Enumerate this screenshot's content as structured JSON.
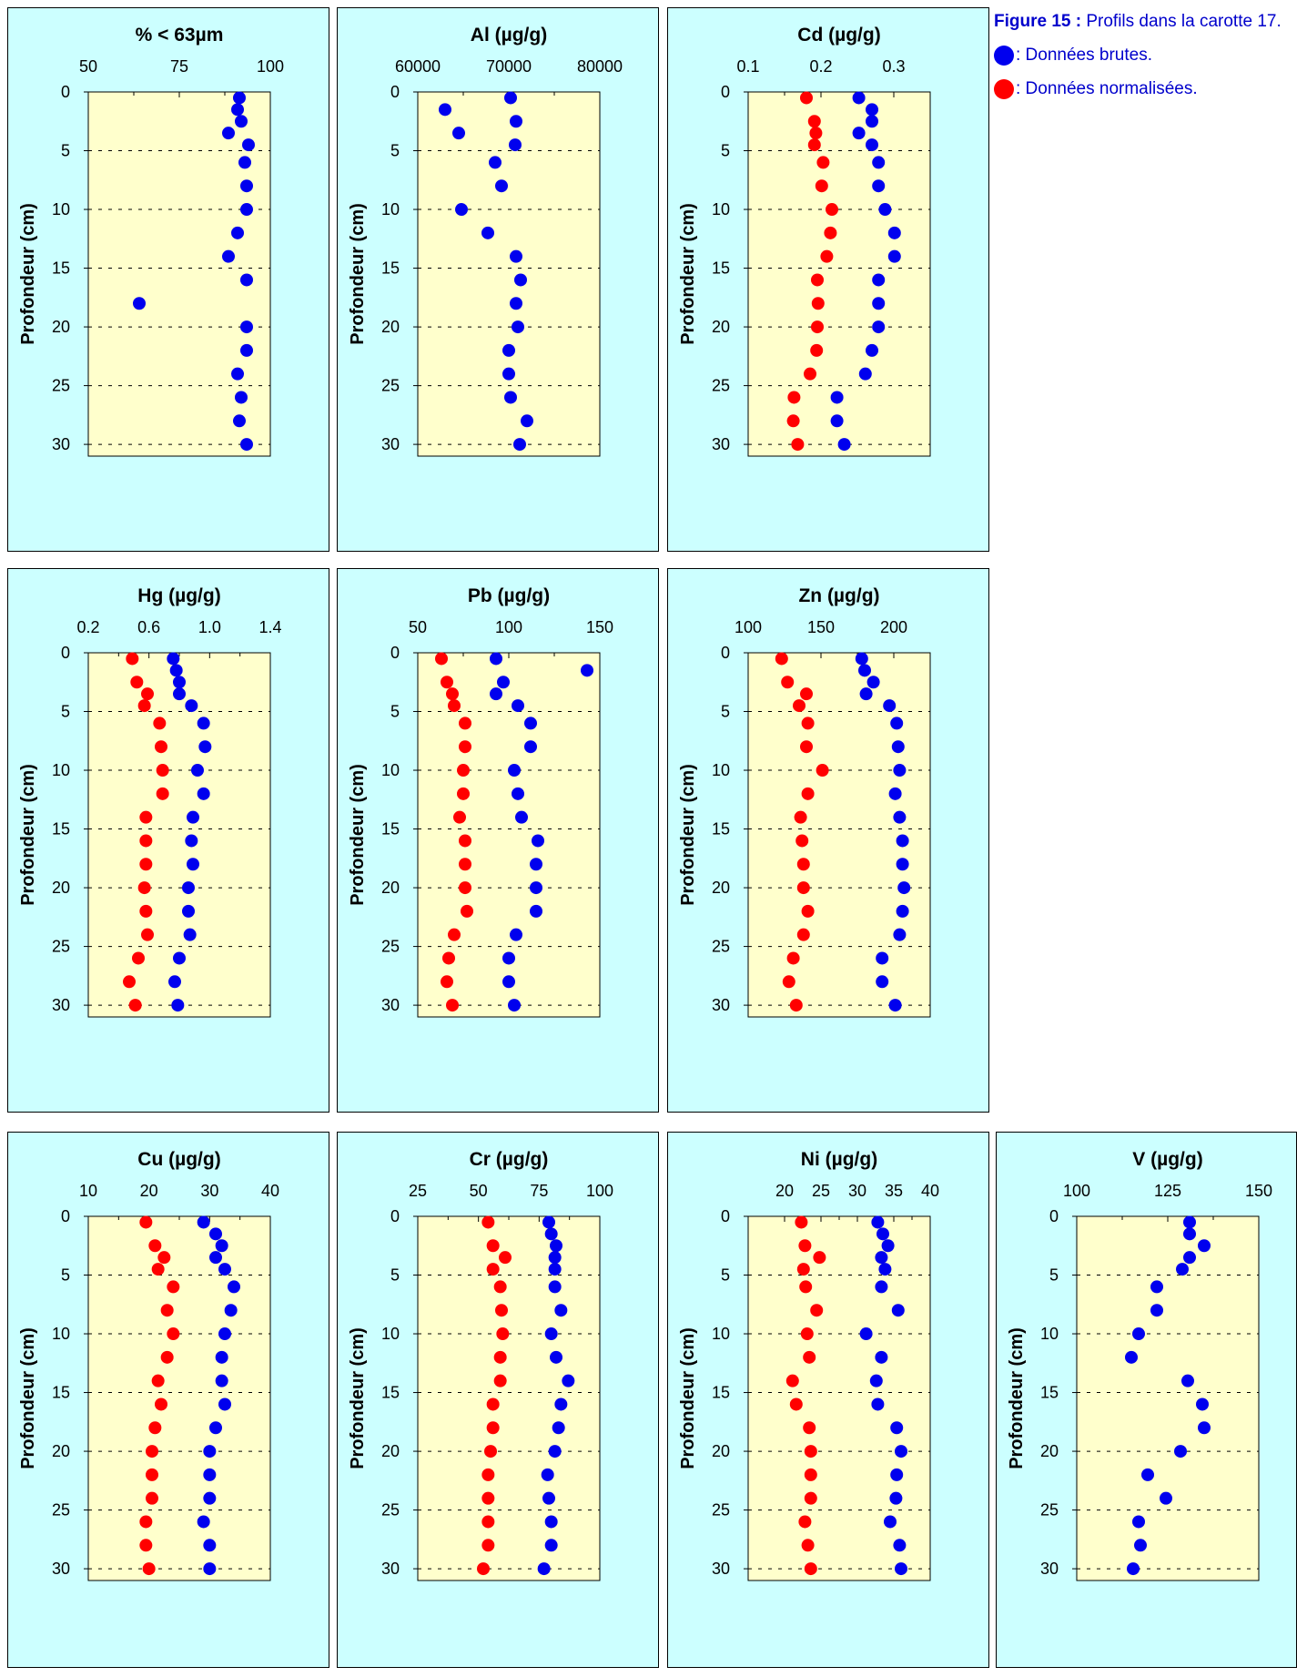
{
  "caption": {
    "label": "Figure 15 :",
    "text": "Profils dans la carotte 17.",
    "legend": [
      {
        "marker_color": "#0000ee",
        "text": ": Données brutes."
      },
      {
        "marker_color": "#ff0000",
        "text": ": Données normalisées."
      }
    ]
  },
  "colors": {
    "panel_bg": "#ccffff",
    "plot_bg": "#ffffcc",
    "raw": "#0000ee",
    "normalized": "#ff0000"
  },
  "chart_data": [
    {
      "type": "scatter",
      "title": "% < 63µm",
      "ylabel": "Profondeur (cm)",
      "xlim": [
        50,
        100
      ],
      "xticks": [
        50,
        75,
        100
      ],
      "xtick_labels": [
        "50",
        "75",
        "100"
      ],
      "ylim": [
        0,
        31
      ],
      "yticks": [
        0,
        5,
        10,
        15,
        20,
        25,
        30
      ],
      "series": [
        {
          "color": "#0000ee",
          "x": [
            91.5,
            91,
            92,
            88.5,
            94,
            93,
            93.5,
            93.5,
            91,
            88.5,
            93.5,
            64,
            93.5,
            93.5,
            91,
            92,
            91.5,
            93.5
          ],
          "y": [
            0.5,
            1.5,
            2.5,
            3.5,
            4.5,
            6,
            8,
            10,
            12,
            14,
            16,
            18,
            20,
            22,
            24,
            26,
            28,
            30
          ]
        }
      ]
    },
    {
      "type": "scatter",
      "title": "Al (µg/g)",
      "ylabel": "Profondeur (cm)",
      "xlim": [
        60000,
        80000
      ],
      "xticks": [
        60000,
        70000,
        80000
      ],
      "xtick_labels": [
        "60000",
        "70000",
        "80000"
      ],
      "ylim": [
        0,
        31
      ],
      "yticks": [
        0,
        5,
        10,
        15,
        20,
        25,
        30
      ],
      "series": [
        {
          "color": "#0000ee",
          "x": [
            70200,
            63000,
            70800,
            64500,
            70700,
            68500,
            69200,
            64800,
            67700,
            70800,
            71300,
            70800,
            71000,
            70000,
            70000,
            70200,
            72000,
            71200
          ],
          "y": [
            0.5,
            1.5,
            2.5,
            3.5,
            4.5,
            6,
            8,
            10,
            12,
            14,
            16,
            18,
            20,
            22,
            24,
            26,
            28,
            30
          ]
        }
      ]
    },
    {
      "type": "scatter",
      "title": "Cd (µg/g)",
      "ylabel": "Profondeur (cm)",
      "xlim": [
        0.1,
        0.35
      ],
      "xticks": [
        0.1,
        0.2,
        0.3
      ],
      "xtick_labels": [
        "0.1",
        "0.2",
        "0.3"
      ],
      "ylim": [
        0,
        31
      ],
      "yticks": [
        0,
        5,
        10,
        15,
        20,
        25,
        30
      ],
      "series": [
        {
          "color": "#0000ee",
          "x": [
            0.252,
            0.27,
            0.27,
            0.252,
            0.27,
            0.279,
            0.279,
            0.288,
            0.301,
            0.301,
            0.279,
            0.279,
            0.279,
            0.27,
            0.261,
            0.222,
            0.222,
            0.232
          ],
          "y": [
            0.5,
            1.5,
            2.5,
            3.5,
            4.5,
            6,
            8,
            10,
            12,
            14,
            16,
            18,
            20,
            22,
            24,
            26,
            28,
            30
          ]
        },
        {
          "color": "#ff0000",
          "x": [
            0.18,
            0.191,
            0.193,
            0.191,
            0.203,
            0.201,
            0.215,
            0.213,
            0.208,
            0.195,
            0.196,
            0.195,
            0.194,
            0.185,
            0.163,
            0.162,
            0.168
          ],
          "y": [
            0.5,
            2.5,
            3.5,
            4.5,
            6,
            8,
            10,
            12,
            14,
            16,
            18,
            20,
            22,
            24,
            26,
            28,
            30
          ]
        }
      ]
    },
    {
      "type": "scatter",
      "title": "Hg (µg/g)",
      "ylabel": "Profondeur (cm)",
      "xlim": [
        0.2,
        1.4
      ],
      "xticks": [
        0.2,
        0.6,
        1.0,
        1.4
      ],
      "xtick_labels": [
        "0.2",
        "0.6",
        "1.0",
        "1.4"
      ],
      "ylim": [
        0,
        31
      ],
      "yticks": [
        0,
        5,
        10,
        15,
        20,
        25,
        30
      ],
      "series": [
        {
          "color": "#0000ee",
          "x": [
            0.76,
            0.78,
            0.8,
            0.8,
            0.88,
            0.96,
            0.97,
            0.92,
            0.96,
            0.89,
            0.88,
            0.89,
            0.86,
            0.86,
            0.87,
            0.8,
            0.77,
            0.79
          ],
          "y": [
            0.5,
            1.5,
            2.5,
            3.5,
            4.5,
            6,
            8,
            10,
            12,
            14,
            16,
            18,
            20,
            22,
            24,
            26,
            28,
            30
          ]
        },
        {
          "color": "#ff0000",
          "x": [
            0.49,
            0.52,
            0.59,
            0.57,
            0.67,
            0.68,
            0.69,
            0.69,
            0.58,
            0.58,
            0.58,
            0.57,
            0.58,
            0.59,
            0.53,
            0.47,
            0.51
          ],
          "y": [
            0.5,
            2.5,
            3.5,
            4.5,
            6,
            8,
            10,
            12,
            14,
            16,
            18,
            20,
            22,
            24,
            26,
            28,
            30
          ]
        }
      ]
    },
    {
      "type": "scatter",
      "title": "Pb (µg/g)",
      "ylabel": "Profondeur (cm)",
      "xlim": [
        50,
        150
      ],
      "xticks": [
        50,
        100,
        150
      ],
      "xtick_labels": [
        "50",
        "100",
        "150"
      ],
      "ylim": [
        0,
        31
      ],
      "yticks": [
        0,
        5,
        10,
        15,
        20,
        25,
        30
      ],
      "series": [
        {
          "color": "#0000ee",
          "x": [
            93,
            143,
            97,
            93,
            105,
            112,
            112,
            103,
            105,
            107,
            116,
            115,
            115,
            115,
            104,
            100,
            100,
            103
          ],
          "y": [
            0.5,
            1.5,
            2.5,
            3.5,
            4.5,
            6,
            8,
            10,
            12,
            14,
            16,
            18,
            20,
            22,
            24,
            26,
            28,
            30
          ]
        },
        {
          "color": "#ff0000",
          "x": [
            63,
            66,
            69,
            70,
            76,
            76,
            75,
            75,
            73,
            76,
            76,
            76,
            77,
            70,
            67,
            66,
            69
          ],
          "y": [
            0.5,
            2.5,
            3.5,
            4.5,
            6,
            8,
            10,
            12,
            14,
            16,
            18,
            20,
            22,
            24,
            26,
            28,
            30
          ]
        }
      ]
    },
    {
      "type": "scatter",
      "title": "Zn (µg/g)",
      "ylabel": "Profondeur (cm)",
      "xlim": [
        100,
        225
      ],
      "xticks": [
        100,
        150,
        200
      ],
      "xtick_labels": [
        "100",
        "150",
        "200"
      ],
      "ylim": [
        0,
        31
      ],
      "yticks": [
        0,
        5,
        10,
        15,
        20,
        25,
        30
      ],
      "series": [
        {
          "color": "#0000ee",
          "x": [
            178,
            180,
            186,
            181,
            197,
            202,
            203,
            204,
            201,
            204,
            206,
            206,
            207,
            206,
            204,
            192,
            192,
            201
          ],
          "y": [
            0.5,
            1.5,
            2.5,
            3.5,
            4.5,
            6,
            8,
            10,
            12,
            14,
            16,
            18,
            20,
            22,
            24,
            26,
            28,
            30
          ]
        },
        {
          "color": "#ff0000",
          "x": [
            123,
            127,
            140,
            135,
            141,
            140,
            151,
            141,
            136,
            137,
            138,
            138,
            141,
            138,
            131,
            128,
            133
          ],
          "y": [
            0.5,
            2.5,
            3.5,
            4.5,
            6,
            8,
            10,
            12,
            14,
            16,
            18,
            20,
            22,
            24,
            26,
            28,
            30
          ]
        }
      ]
    },
    {
      "type": "scatter",
      "title": "Cu (µg/g)",
      "ylabel": "Profondeur (cm)",
      "xlim": [
        10,
        40
      ],
      "xticks": [
        10,
        20,
        30,
        40
      ],
      "xtick_labels": [
        "10",
        "20",
        "30",
        "40"
      ],
      "ylim": [
        0,
        31
      ],
      "yticks": [
        0,
        5,
        10,
        15,
        20,
        25,
        30
      ],
      "series": [
        {
          "color": "#0000ee",
          "x": [
            29,
            31,
            32,
            31,
            32.5,
            34,
            33.5,
            32.5,
            32,
            32,
            32.5,
            31,
            30,
            30,
            30,
            29,
            30,
            30
          ],
          "y": [
            0.5,
            1.5,
            2.5,
            3.5,
            4.5,
            6,
            8,
            10,
            12,
            14,
            16,
            18,
            20,
            22,
            24,
            26,
            28,
            30
          ]
        },
        {
          "color": "#ff0000",
          "x": [
            19.5,
            21,
            22.5,
            21.5,
            24,
            23,
            24,
            23,
            21.5,
            22,
            21,
            20.5,
            20.5,
            20.5,
            19.5,
            19.5,
            20
          ],
          "y": [
            0.5,
            2.5,
            3.5,
            4.5,
            6,
            8,
            10,
            12,
            14,
            16,
            18,
            20,
            22,
            24,
            26,
            28,
            30
          ]
        }
      ]
    },
    {
      "type": "scatter",
      "title": "Cr (µg/g)",
      "ylabel": "Profondeur (cm)",
      "xlim": [
        25,
        100
      ],
      "xticks": [
        25,
        50,
        75,
        100
      ],
      "xtick_labels": [
        "25",
        "50",
        "75",
        "100"
      ],
      "ylim": [
        0,
        31
      ],
      "yticks": [
        0,
        5,
        10,
        15,
        20,
        25,
        30
      ],
      "series": [
        {
          "color": "#0000ee",
          "x": [
            79,
            80,
            82,
            81.5,
            81.5,
            81.5,
            84,
            80,
            82,
            87,
            84,
            83,
            81.5,
            78.5,
            79,
            80,
            80,
            77
          ],
          "y": [
            0.5,
            1.5,
            2.5,
            3.5,
            4.5,
            6,
            8,
            10,
            12,
            14,
            16,
            18,
            20,
            22,
            24,
            26,
            28,
            30
          ]
        },
        {
          "color": "#ff0000",
          "x": [
            54,
            56,
            61,
            56,
            59,
            59.5,
            60,
            59,
            59,
            56,
            56,
            55,
            54,
            54,
            54,
            54,
            52
          ],
          "y": [
            0.5,
            2.5,
            3.5,
            4.5,
            6,
            8,
            10,
            12,
            14,
            16,
            18,
            20,
            22,
            24,
            26,
            28,
            30
          ]
        }
      ]
    },
    {
      "type": "scatter",
      "title": "Ni (µg/g)",
      "ylabel": "Profondeur (cm)",
      "xlim": [
        15,
        40
      ],
      "xticks": [
        20,
        25,
        30,
        35,
        40
      ],
      "xtick_labels": [
        "20",
        "25",
        "30",
        "35",
        "40"
      ],
      "ylim": [
        0,
        31
      ],
      "yticks": [
        0,
        5,
        10,
        15,
        20,
        25,
        30
      ],
      "series": [
        {
          "color": "#0000ee",
          "x": [
            32.8,
            33.5,
            34.2,
            33.3,
            33.8,
            33.3,
            35.6,
            31.2,
            33.3,
            32.6,
            32.8,
            35.4,
            36,
            35.4,
            35.3,
            34.5,
            35.8,
            36
          ],
          "y": [
            0.5,
            1.5,
            2.5,
            3.5,
            4.5,
            6,
            8,
            10,
            12,
            14,
            16,
            18,
            20,
            22,
            24,
            26,
            28,
            30
          ]
        },
        {
          "color": "#ff0000",
          "x": [
            22.3,
            22.8,
            24.8,
            22.6,
            22.9,
            24.4,
            23.1,
            23.4,
            21.1,
            21.6,
            23.4,
            23.6,
            23.6,
            23.6,
            22.8,
            23.2,
            23.6
          ],
          "y": [
            0.5,
            2.5,
            3.5,
            4.5,
            6,
            8,
            10,
            12,
            14,
            16,
            18,
            20,
            22,
            24,
            26,
            28,
            30
          ]
        }
      ]
    },
    {
      "type": "scatter",
      "title": "V (µg/g)",
      "ylabel": "Profondeur (cm)",
      "xlim": [
        100,
        150
      ],
      "xticks": [
        100,
        125,
        150
      ],
      "xtick_labels": [
        "100",
        "125",
        "150"
      ],
      "ylim": [
        0,
        31
      ],
      "yticks": [
        0,
        5,
        10,
        15,
        20,
        25,
        30
      ],
      "series": [
        {
          "color": "#0000ee",
          "x": [
            131,
            131,
            135,
            131,
            129,
            122,
            122,
            117,
            115,
            130.5,
            134.5,
            135,
            128.5,
            119.5,
            124.5,
            117,
            117.5,
            115.5
          ],
          "y": [
            0.5,
            1.5,
            2.5,
            3.5,
            4.5,
            6,
            8,
            10,
            12,
            14,
            16,
            18,
            20,
            22,
            24,
            26,
            28,
            30
          ]
        }
      ]
    }
  ]
}
